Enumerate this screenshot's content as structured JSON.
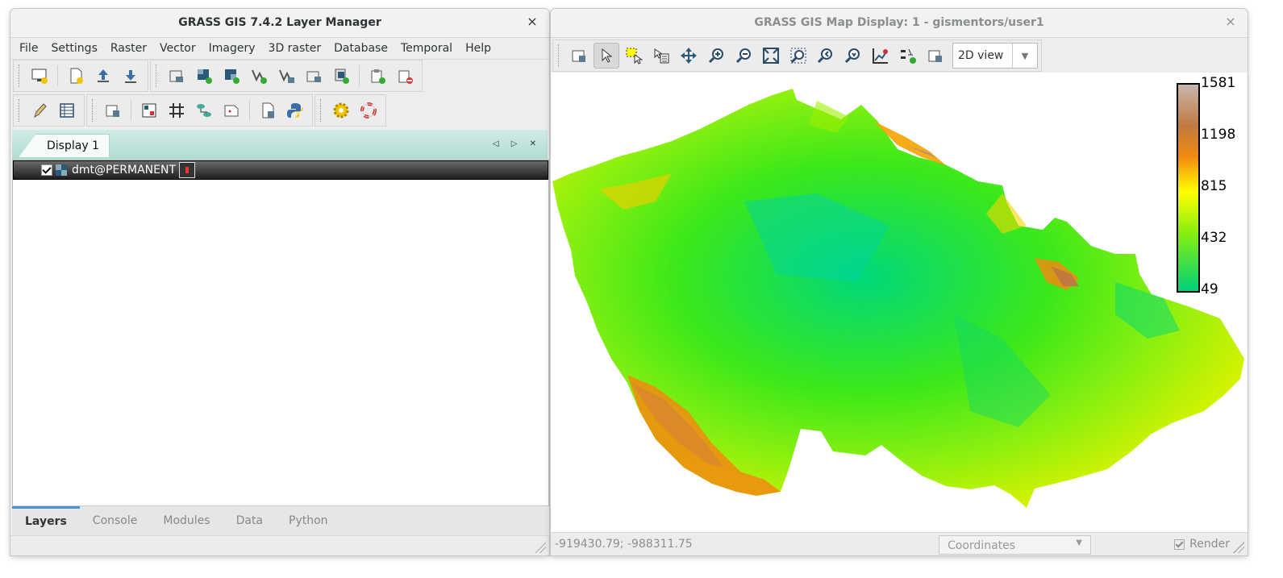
{
  "layer_manager": {
    "title": "GRASS GIS 7.4.2 Layer Manager",
    "close_glyph": "×",
    "menu": [
      "File",
      "Settings",
      "Raster",
      "Vector",
      "Imagery",
      "3D raster",
      "Database",
      "Temporal",
      "Help"
    ],
    "display_tab": "Display 1",
    "notebook_controls": "◁ ▷ ✕",
    "layer": {
      "name": "dmt@PERMANENT",
      "checked": true
    },
    "bottom_tabs": [
      "Layers",
      "Console",
      "Modules",
      "Data",
      "Python"
    ],
    "active_bottom_tab": "Layers"
  },
  "map_display": {
    "title": "GRASS GIS Map Display: 1 - gismentors/user1",
    "close_glyph": "×",
    "view_mode": "2D view",
    "legend": {
      "max": "1581",
      "v2": "1198",
      "v3": "815",
      "v4": "432",
      "min": "49"
    },
    "coordinates": "-919430.79; -988311.75",
    "coord_selector": "Coordinates",
    "render_label": "Render",
    "render_checked": true
  },
  "colors": {
    "accent": "#4a90d9",
    "notebook": "#a9d9ce",
    "legend_high": "#c8b6ac",
    "legend_low": "#00d07a"
  }
}
